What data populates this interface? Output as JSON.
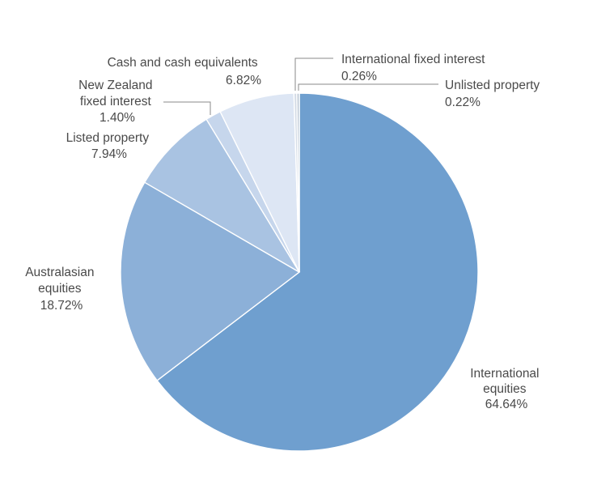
{
  "chart_data": {
    "type": "pie",
    "title": "",
    "slices": [
      {
        "name": "International equities",
        "label_lines": [
          "International",
          "equities"
        ],
        "value_label": "64.64%",
        "value": 64.64,
        "color": "#6f9fcf"
      },
      {
        "name": "Australasian equities",
        "label_lines": [
          "Australasian",
          "equities"
        ],
        "value_label": "18.72%",
        "value": 18.72,
        "color": "#8cb0d8"
      },
      {
        "name": "Listed property",
        "label_lines": [
          "Listed property"
        ],
        "value_label": "7.94%",
        "value": 7.94,
        "color": "#a9c3e2"
      },
      {
        "name": "New Zealand fixed interest",
        "label_lines": [
          "New Zealand",
          "fixed interest"
        ],
        "value_label": "1.40%",
        "value": 1.4,
        "color": "#c6d6ec"
      },
      {
        "name": "Cash and cash equivalents",
        "label_lines": [
          "Cash and cash equivalents"
        ],
        "value_label": "6.82%",
        "value": 6.82,
        "color": "#dde6f4"
      },
      {
        "name": "International fixed interest",
        "label_lines": [
          "International fixed interest"
        ],
        "value_label": "0.26%",
        "value": 0.26,
        "color": "#d3dbe6"
      },
      {
        "name": "Unlisted property",
        "label_lines": [
          "Unlisted property"
        ],
        "value_label": "0.22%",
        "value": 0.22,
        "color": "#b8c4d2"
      }
    ]
  }
}
